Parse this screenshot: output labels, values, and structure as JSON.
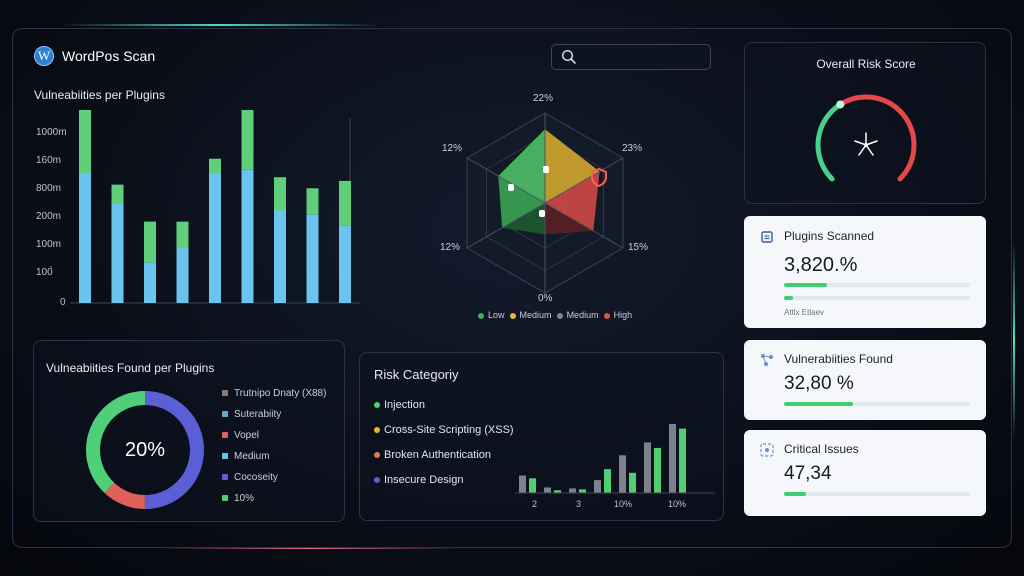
{
  "app": {
    "title": "WordPos Scan",
    "logo_letter": "W"
  },
  "search": {
    "placeholder": ""
  },
  "bar_chart": {
    "title": "Vulneabiities per Plugins",
    "y_ticks": [
      "1000m",
      "160m",
      "800m",
      "200m",
      "100m",
      "100̀",
      "0"
    ]
  },
  "chart_data": [
    {
      "type": "bar",
      "title": "Vulneabiities per Plugins",
      "y_tick_labels": [
        "1000m",
        "160m",
        "800m",
        "200m",
        "100m",
        "100̀",
        "0"
      ],
      "categories": [
        "",
        "",
        "",
        "",
        "",
        "",
        "",
        "",
        ""
      ],
      "series": [
        {
          "values": [
            3.5,
            2.7,
            1.1,
            1.5,
            3.5,
            3.6,
            2.5,
            2.4,
            2.1
          ]
        },
        {
          "values": [
            1.8,
            0.5,
            1.1,
            0.7,
            0.4,
            2.8,
            0.9,
            0.7,
            1.2
          ]
        }
      ],
      "colors": [
        "#6cc3ee",
        "#5fcf7a"
      ]
    },
    {
      "type": "radar",
      "labels": [
        "22%",
        "23%",
        "15%",
        "0%",
        "12%",
        "12%"
      ],
      "series": [
        {
          "name": "Low",
          "color": "#3fb058"
        },
        {
          "name": "Medium",
          "color": "#e6b634"
        },
        {
          "name": "Medium",
          "color": "#7d8796"
        },
        {
          "name": "High",
          "color": "#e2534e"
        }
      ]
    },
    {
      "type": "pie",
      "center_label": "20%",
      "slices": [
        {
          "label": "Trutnipo Dnaty (X88)",
          "value": 50,
          "color": "#5b5fd6"
        },
        {
          "label": "Suterabiity",
          "value": 0,
          "color": "#6aa8d6"
        },
        {
          "label": "Vopel",
          "value": 12,
          "color": "#e0605a"
        },
        {
          "label": "Medium",
          "value": 0,
          "color": "#5ec8e8"
        },
        {
          "label": "Cocoseity",
          "value": 0,
          "color": "#5b5fd6"
        },
        {
          "label": "10%",
          "value": 38,
          "color": "#4fcf78"
        }
      ]
    },
    {
      "type": "bar",
      "title": "Risk Categoriy",
      "x_tick_labels": [
        "2",
        "3",
        "10%",
        "10%"
      ],
      "series": [
        {
          "name": "",
          "color": "#4fcf6e",
          "values": [
            1.6,
            0.3,
            0.4,
            2.6,
            2.2,
            4.9,
            7.0
          ]
        },
        {
          "name": "",
          "color": "#7b828d",
          "values": [
            1.9,
            0.6,
            0.5,
            1.4,
            4.1,
            5.5,
            7.5
          ]
        }
      ]
    }
  ],
  "radar": {
    "labels": [
      "22%",
      "23%",
      "15%",
      "0%",
      "12%",
      "12%"
    ],
    "legend": [
      "Low",
      "Medium",
      "Medium",
      "High"
    ]
  },
  "donut": {
    "title": "Vulneabiities Found per Plugins",
    "center": "20%",
    "legend": [
      "Trutnipo Dnaty (X88)",
      "Suterabiity",
      "Vopel",
      "Medium",
      "Cocoseity",
      "10%"
    ]
  },
  "risk": {
    "title": "Risk Categoriy",
    "items": [
      "Injection",
      "Cross-Site Scripting (XSS)",
      "Broken Authentication",
      "Insecure Design"
    ],
    "x_ticks": [
      "2",
      "3",
      "10%",
      "10%"
    ]
  },
  "gauge": {
    "title": "Overall Risk Score",
    "value": 0.62
  },
  "stats": [
    {
      "label": "Plugins Scanned",
      "value": "3,820.%",
      "progress": [
        0.23,
        0.05
      ],
      "note": "Attlx Etlaev"
    },
    {
      "label": "Vulnerabiities Found",
      "value": "32,80 %",
      "progress": [
        0.37
      ]
    },
    {
      "label": "Critical Issues",
      "value": "47,34",
      "progress": [
        0.12
      ]
    }
  ],
  "colors": {
    "green": "#4fcf6e",
    "blue": "#6cc3ee",
    "yellow": "#e6b634",
    "red": "#e2534e",
    "gray": "#7d8796",
    "purple": "#5b5fd6"
  }
}
